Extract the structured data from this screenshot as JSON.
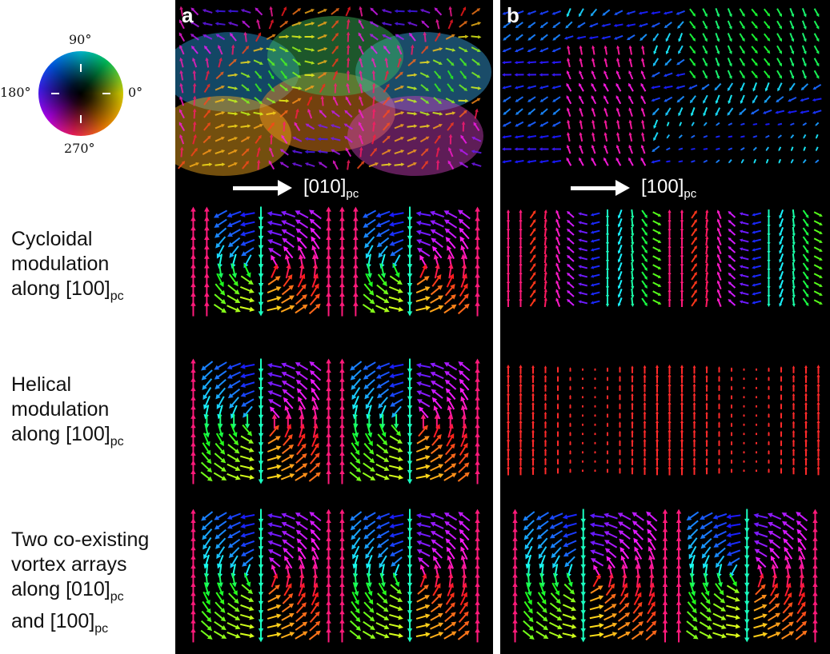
{
  "color_wheel": {
    "labels": {
      "deg90": "90°",
      "deg180": "180°",
      "deg0": "0°",
      "deg270": "270°"
    }
  },
  "panels": [
    {
      "label": "a",
      "direction_main": "[010]",
      "direction_sub": "pc"
    },
    {
      "label": "b",
      "direction_main": "[100]",
      "direction_sub": "pc"
    }
  ],
  "rows": [
    {
      "lines": [
        "Cycloidal",
        "modulation",
        "along [100]"
      ],
      "sub": "pc"
    },
    {
      "lines": [
        "Helical",
        "modulation",
        "along [100]"
      ],
      "sub": "pc"
    },
    {
      "lines": [
        "Two co-existing",
        "vortex arrays",
        "along [010]",
        "and [100]"
      ],
      "sub": "pc"
    }
  ],
  "colors": {
    "background": "#000000",
    "cyan": "#2ad4e8",
    "red": "#ff2a2a",
    "green": "#40e060",
    "blue": "#3040ff",
    "magenta": "#d040ff",
    "orange": "#ffa020"
  }
}
